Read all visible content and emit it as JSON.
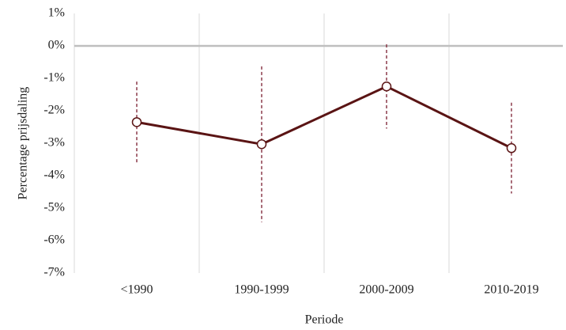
{
  "chart_data": {
    "type": "line",
    "x_label": "Periode",
    "y_label": "Percentage prijsdaling",
    "categories": [
      "<1990",
      "1990-1999",
      "2000-2009",
      "2010-2019"
    ],
    "series": [
      {
        "name": "Percentage prijsdaling",
        "color": "#5a1414",
        "error_color": "#8b3a4a",
        "values": [
          -2.35,
          -3.03,
          -1.25,
          -3.15
        ],
        "errors": [
          1.25,
          2.4,
          1.3,
          1.4
        ]
      }
    ],
    "ylim": [
      -7,
      1
    ],
    "yticks": [
      {
        "value": 1,
        "label": "1%"
      },
      {
        "value": 0,
        "label": "0%"
      },
      {
        "value": -1,
        "label": "-1%"
      },
      {
        "value": -2,
        "label": "-2%"
      },
      {
        "value": -3,
        "label": "-3%"
      },
      {
        "value": -4,
        "label": "-4%"
      },
      {
        "value": -5,
        "label": "-5%"
      },
      {
        "value": -6,
        "label": "-6%"
      },
      {
        "value": -7,
        "label": "-7%"
      }
    ],
    "grid": false
  }
}
